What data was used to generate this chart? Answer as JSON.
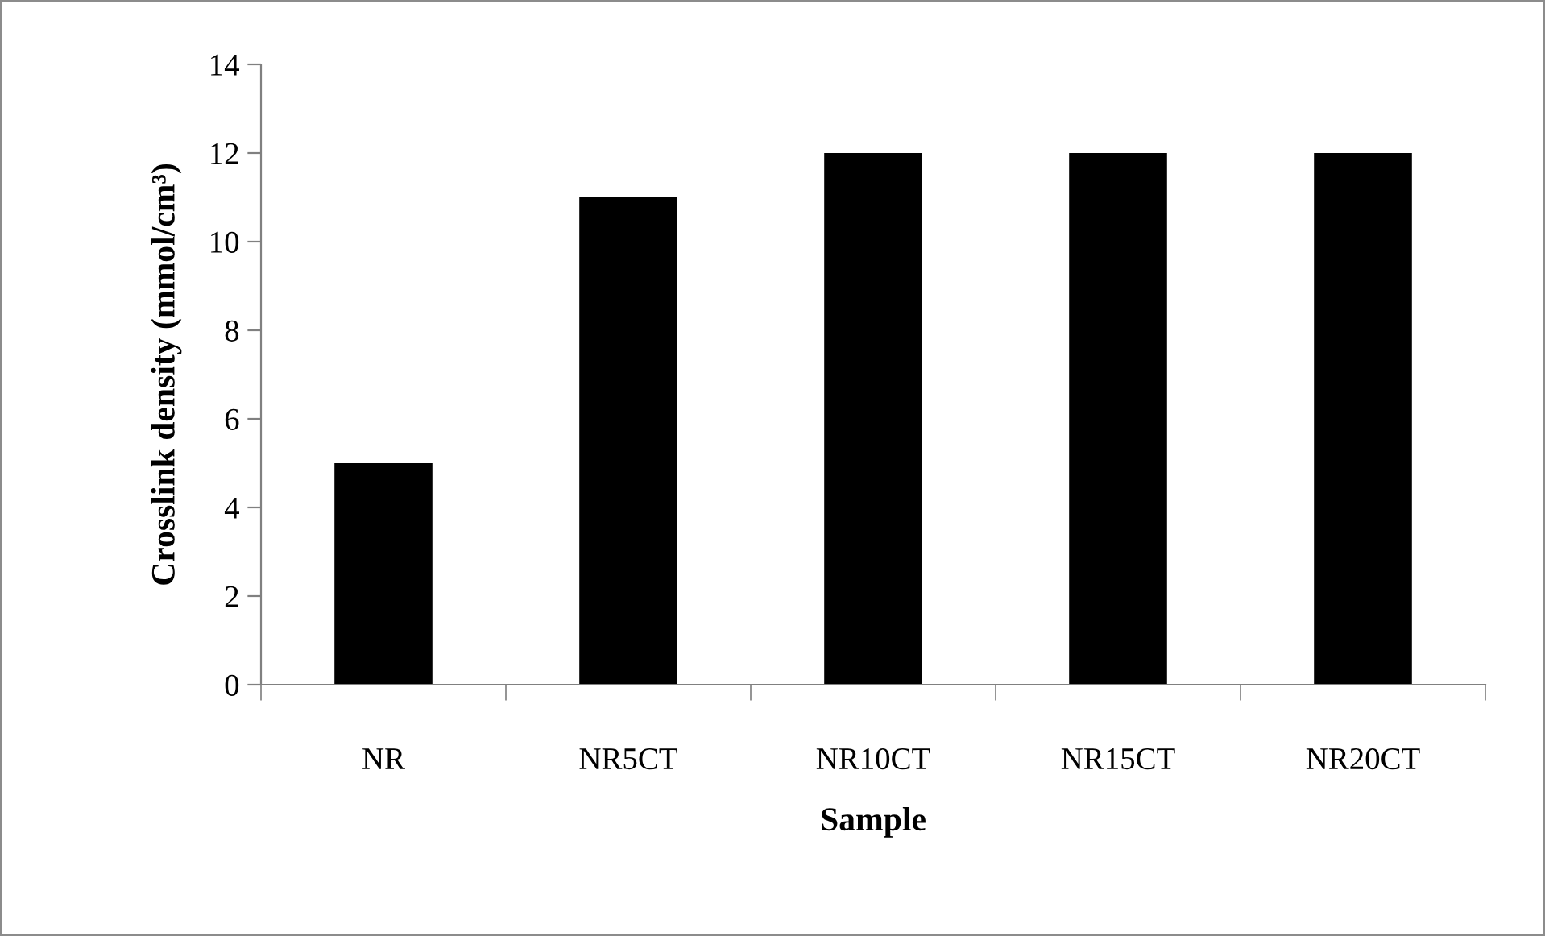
{
  "chart_data": {
    "type": "bar",
    "xlabel": "Sample",
    "ylabel": "Crosslink density (mmol/cm³)",
    "categories": [
      "NR",
      "NR5CT",
      "NR10CT",
      "NR15CT",
      "NR20CT"
    ],
    "values": [
      5,
      11,
      12,
      12,
      12
    ],
    "color": "#000000",
    "ylim": [
      0,
      14
    ],
    "yticks": [
      0,
      2,
      4,
      6,
      8,
      10,
      12,
      14
    ],
    "grid": false
  }
}
